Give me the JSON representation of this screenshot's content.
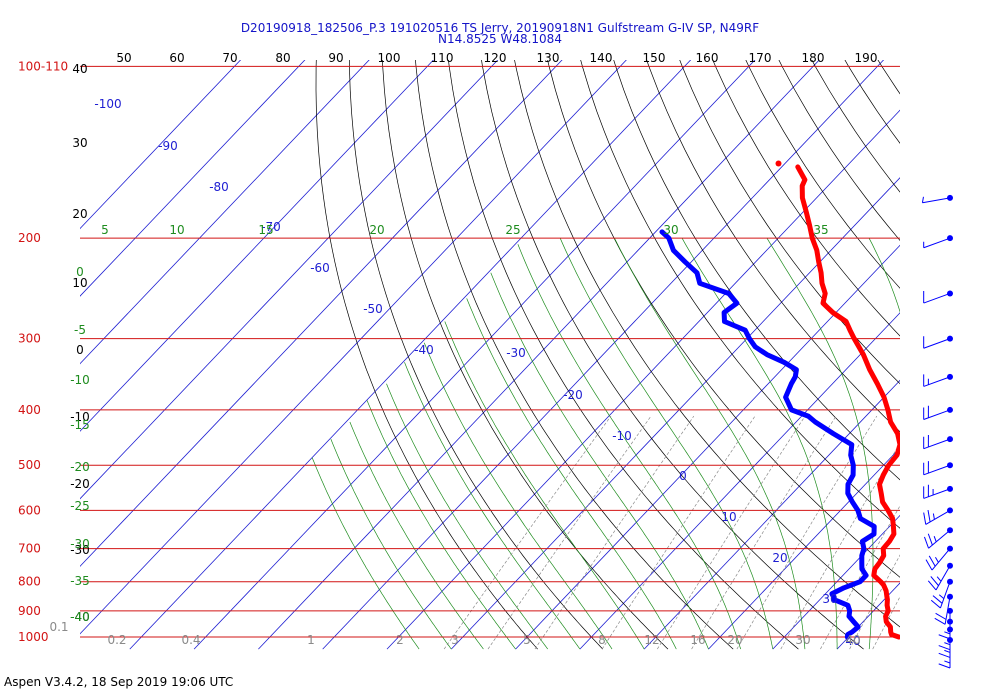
{
  "title": {
    "line1": "D20190918_182506_P.3 191020516 TS Jerry, 20190918N1 Gulfstream G-IV SP, N49RF",
    "line2": "N14.8525 W48.1084"
  },
  "footer": "Aspen V3.4.2, 18 Sep 2019  19:06 UTC",
  "colors": {
    "isobar": "#d21414",
    "isotherm": "#1e1ed2",
    "dry_adiabat": "#000000",
    "moist_adiabat": "#1e8c1e",
    "mixing_ratio": "#8a8a8a",
    "temperature": "#ff0000",
    "dewpoint": "#0000ff",
    "title": "#1414c8"
  },
  "chart_data": {
    "type": "line",
    "subtype": "skew-T log-P sounding",
    "pressure_labels": [
      "100-110",
      "200",
      "300",
      "400",
      "500",
      "600",
      "700",
      "800",
      "900",
      "1000"
    ],
    "pressure_levels": [
      100,
      200,
      300,
      400,
      500,
      600,
      700,
      800,
      900,
      1000
    ],
    "top_scale_labels": [
      "50",
      "60",
      "70",
      "80",
      "90",
      "100",
      "110",
      "120",
      "130",
      "140",
      "150",
      "160",
      "170",
      "180",
      "190"
    ],
    "left_scale_labels": [
      "40",
      "30",
      "20",
      "10",
      "0",
      "-10",
      "-20",
      "-30",
      "-40"
    ],
    "isotherm_labels": [
      "-100",
      "-90",
      "-80",
      "-70",
      "-60",
      "-50",
      "-40",
      "-30",
      "-20",
      "-10",
      "0",
      "10",
      "20",
      "30",
      "40"
    ],
    "moist_adiabat_top_labels": [
      "5",
      "10",
      "15",
      "20",
      "25",
      "30",
      "35"
    ],
    "moist_adiabat_left_labels": [
      "0",
      "-5",
      "-10",
      "-15",
      "-20",
      "-25",
      "-30",
      "-35",
      "-40"
    ],
    "mixing_ratio_labels": [
      "0.1",
      "0.2",
      "0.4",
      "1",
      "2",
      "3",
      "5",
      "8",
      "12",
      "16",
      "20",
      "30",
      "40"
    ],
    "xlim_temperature_c": [
      -48,
      40
    ],
    "ylim_pressure_hpa": [
      1020,
      100
    ],
    "series": [
      {
        "name": "temperature",
        "pressure": [
          1000,
          990,
          980,
          960,
          940,
          920,
          900,
          880,
          860,
          850,
          830,
          810,
          800,
          780,
          760,
          740,
          720,
          700,
          680,
          660,
          640,
          620,
          600,
          580,
          560,
          540,
          520,
          500,
          480,
          460,
          440,
          420,
          400,
          380,
          360,
          340,
          320,
          300,
          290,
          280,
          270,
          260,
          250,
          240,
          230,
          220,
          210,
          200,
          190,
          180,
          170,
          162,
          158,
          150
        ],
        "values": [
          27.8,
          26.3,
          25.8,
          25.0,
          23.6,
          22.7,
          22.3,
          21.3,
          20.5,
          20.0,
          19.0,
          17.7,
          16.8,
          14.8,
          14.0,
          13.8,
          13.4,
          12.3,
          12.2,
          11.8,
          10.6,
          9.3,
          7.4,
          5.3,
          3.8,
          2.2,
          1.4,
          0.8,
          0.6,
          -0.5,
          -2.5,
          -5.3,
          -7.5,
          -10.0,
          -13.0,
          -16.3,
          -19.5,
          -23.3,
          -25.2,
          -27.1,
          -30.5,
          -33.4,
          -34.5,
          -36.5,
          -38.2,
          -40.2,
          -42.2,
          -44.7,
          -47.0,
          -49.5,
          -52.2,
          -54.0,
          -54.5,
          -57.5
        ]
      },
      {
        "name": "dewpoint",
        "pressure": [
          1000,
          990,
          980,
          960,
          940,
          920,
          900,
          880,
          860,
          850,
          840,
          820,
          800,
          780,
          760,
          740,
          720,
          700,
          680,
          660,
          640,
          620,
          600,
          580,
          560,
          540,
          520,
          500,
          480,
          460,
          440,
          420,
          410,
          400,
          380,
          360,
          350,
          340,
          330,
          320,
          310,
          300,
          290,
          280,
          270,
          260,
          250,
          240,
          230,
          220,
          210,
          200,
          195
        ],
        "values": [
          19.8,
          19.5,
          19.8,
          20.0,
          18.5,
          17.0,
          16.3,
          15.2,
          12.2,
          11.7,
          11.0,
          12.0,
          13.6,
          13.6,
          12.0,
          11.0,
          10.0,
          9.3,
          8.0,
          8.7,
          7.6,
          4.3,
          2.7,
          0.6,
          -1.4,
          -2.7,
          -3.3,
          -4.7,
          -6.6,
          -8.0,
          -12.5,
          -17.0,
          -19.0,
          -22.5,
          -25.3,
          -26.4,
          -26.8,
          -27.7,
          -30.7,
          -34.5,
          -37.5,
          -39.6,
          -41.5,
          -46.0,
          -47.4,
          -46.8,
          -49.5,
          -55.5,
          -57.5,
          -61.0,
          -64.5,
          -67.0,
          -69.0
        ]
      },
      {
        "name": "temperature_spike",
        "pressure": [
          148
        ],
        "values": [
          -61
        ]
      }
    ],
    "wind_barbs": {
      "pressure": [
        1000,
        970,
        940,
        900,
        850,
        800,
        750,
        700,
        650,
        600,
        550,
        500,
        450,
        400,
        350,
        300,
        250,
        200,
        170
      ],
      "speed_kt": [
        15,
        15,
        15,
        15,
        20,
        25,
        25,
        25,
        25,
        25,
        25,
        20,
        20,
        20,
        15,
        10,
        10,
        5,
        5
      ],
      "direction_deg": [
        180,
        180,
        180,
        180,
        190,
        200,
        210,
        220,
        230,
        240,
        250,
        250,
        250,
        250,
        250,
        250,
        250,
        250,
        260
      ]
    }
  }
}
